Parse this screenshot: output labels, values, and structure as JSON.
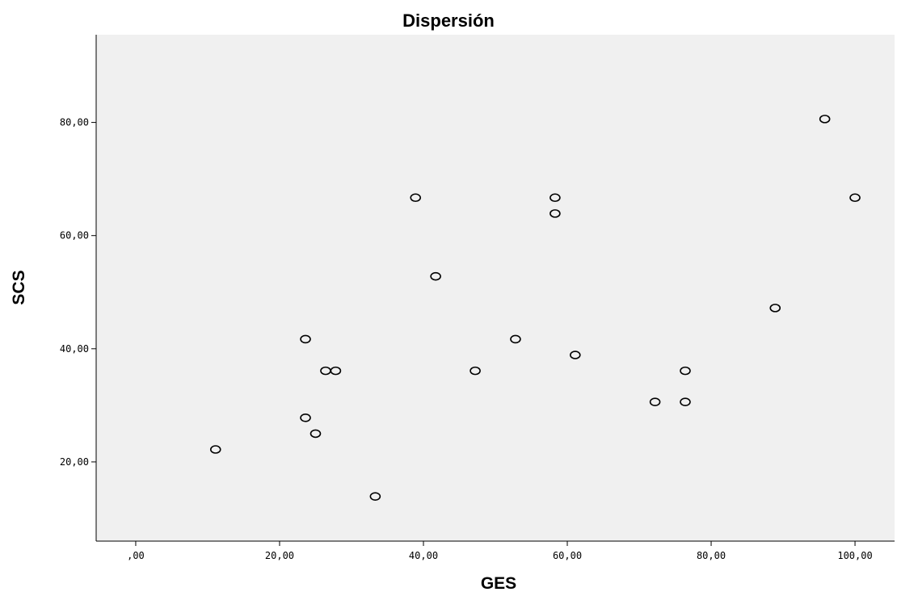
{
  "chart_data": {
    "type": "scatter",
    "title": "Dispersión",
    "xlabel": "GES",
    "ylabel": "SCS",
    "xlim": [
      -5.5,
      105.5
    ],
    "ylim": [
      6,
      95.5
    ],
    "x_ticks": [
      {
        "value": 0,
        "label": ",00"
      },
      {
        "value": 20,
        "label": "20,00"
      },
      {
        "value": 40,
        "label": "40,00"
      },
      {
        "value": 60,
        "label": "60,00"
      },
      {
        "value": 80,
        "label": "80,00"
      },
      {
        "value": 100,
        "label": "100,00"
      }
    ],
    "y_ticks": [
      {
        "value": 20,
        "label": "20,00"
      },
      {
        "value": 40,
        "label": "40,00"
      },
      {
        "value": 60,
        "label": "60,00"
      },
      {
        "value": 80,
        "label": "80,00"
      }
    ],
    "grid": false,
    "background_color": "#f0f0f0",
    "marker": "hollow-circle",
    "points": [
      {
        "x": 11.1,
        "y": 22.2
      },
      {
        "x": 23.6,
        "y": 41.7
      },
      {
        "x": 23.6,
        "y": 27.8
      },
      {
        "x": 25.0,
        "y": 25.0
      },
      {
        "x": 26.4,
        "y": 36.1
      },
      {
        "x": 27.8,
        "y": 36.1
      },
      {
        "x": 33.3,
        "y": 13.9
      },
      {
        "x": 38.9,
        "y": 66.7
      },
      {
        "x": 41.7,
        "y": 52.8
      },
      {
        "x": 47.2,
        "y": 36.1
      },
      {
        "x": 52.8,
        "y": 41.7
      },
      {
        "x": 58.3,
        "y": 66.7
      },
      {
        "x": 58.3,
        "y": 63.9
      },
      {
        "x": 61.1,
        "y": 38.9
      },
      {
        "x": 72.2,
        "y": 30.6
      },
      {
        "x": 76.4,
        "y": 36.1
      },
      {
        "x": 76.4,
        "y": 30.6
      },
      {
        "x": 88.9,
        "y": 47.2
      },
      {
        "x": 95.8,
        "y": 80.6
      },
      {
        "x": 100.0,
        "y": 66.7
      }
    ]
  }
}
